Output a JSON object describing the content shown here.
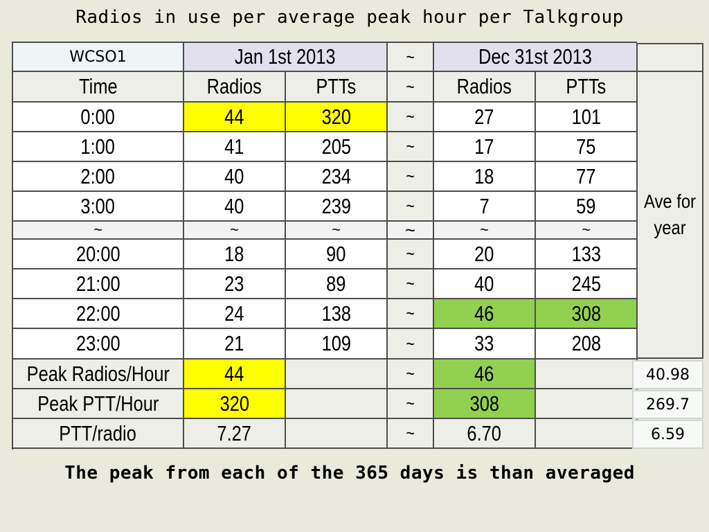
{
  "title": "Radios in use per average peak hour per Talkgroup",
  "footer": "The peak from each of the 365 days is than averaged",
  "table": {
    "group": "WCSO1",
    "date_start": "Jan 1st 2013",
    "date_end": "Dec 31st 2013",
    "sep": "~",
    "headers": {
      "time": "Time",
      "radios": "Radios",
      "ptts": "PTTs"
    },
    "ave_label": "Ave for year",
    "rows": [
      {
        "time": "0:00",
        "r1": "44",
        "p1": "320",
        "r2": "27",
        "p2": "101"
      },
      {
        "time": "1:00",
        "r1": "41",
        "p1": "205",
        "r2": "17",
        "p2": "75"
      },
      {
        "time": "2:00",
        "r1": "40",
        "p1": "234",
        "r2": "18",
        "p2": "77"
      },
      {
        "time": "3:00",
        "r1": "40",
        "p1": "239",
        "r2": "7",
        "p2": "59"
      },
      {
        "time": "~",
        "r1": "~",
        "p1": "~",
        "r2": "~",
        "p2": "~"
      },
      {
        "time": "20:00",
        "r1": "18",
        "p1": "90",
        "r2": "20",
        "p2": "133"
      },
      {
        "time": "21:00",
        "r1": "23",
        "p1": "89",
        "r2": "40",
        "p2": "245"
      },
      {
        "time": "22:00",
        "r1": "24",
        "p1": "138",
        "r2": "46",
        "p2": "308"
      },
      {
        "time": "23:00",
        "r1": "21",
        "p1": "109",
        "r2": "33",
        "p2": "208"
      }
    ],
    "summary": [
      {
        "label": "Peak Radios/Hour",
        "v1": "44",
        "v2": "46",
        "ave": "40.98"
      },
      {
        "label": "Peak PTT/Hour",
        "v1": "320",
        "v2": "308",
        "ave": "269.7"
      },
      {
        "label": "PTT/radio",
        "v1": "7.27",
        "v2": "6.70",
        "ave": "6.59"
      }
    ]
  },
  "colors": {
    "highlight_start": "#ffff00",
    "highlight_end": "#92d050",
    "header_date": "#e3e0ee",
    "background": "#e9e9dc"
  }
}
